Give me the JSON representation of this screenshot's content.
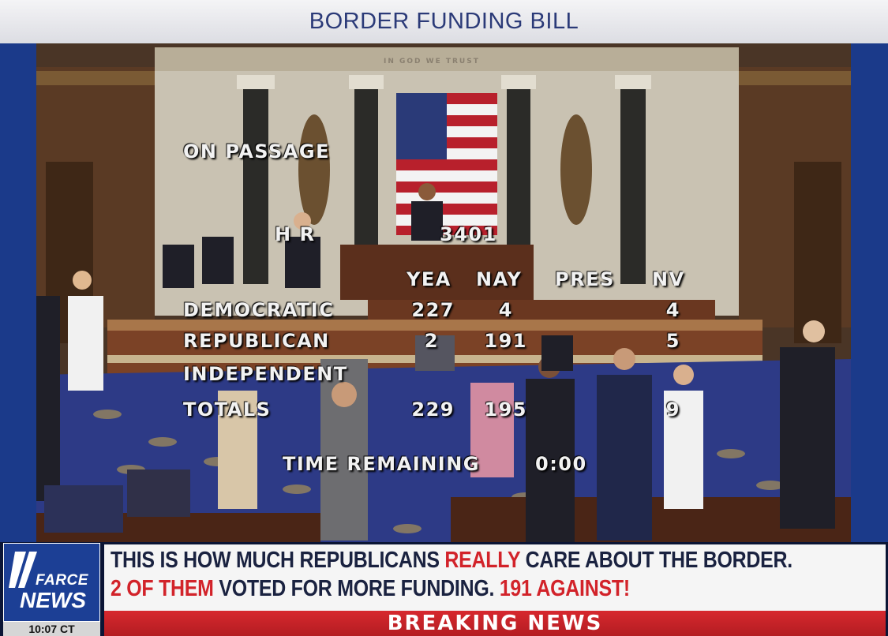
{
  "title_bar": {
    "text": "BORDER FUNDING BILL"
  },
  "vote_board": {
    "on_passage": "ON PASSAGE",
    "bill_prefix": "H R",
    "bill_number": "3401",
    "columns": {
      "yea": "YEA",
      "nay": "NAY",
      "pres": "PRES",
      "nv": "NV"
    },
    "rows": [
      {
        "party": "DEMOCRATIC",
        "yea": "227",
        "nay": "4",
        "pres": "",
        "nv": "4"
      },
      {
        "party": "REPUBLICAN",
        "yea": "2",
        "nay": "191",
        "pres": "",
        "nv": "5"
      },
      {
        "party": "INDEPENDENT",
        "yea": "",
        "nay": "",
        "pres": "",
        "nv": ""
      },
      {
        "party": "TOTALS",
        "yea": "229",
        "nay": "195",
        "pres": "",
        "nv": "9"
      }
    ],
    "time_remaining_label": "TIME REMAINING",
    "time_remaining_value": "0:00"
  },
  "chamber_sign": "IN GOD WE TRUST",
  "lower_third": {
    "logo_top": "FARCE",
    "logo_bottom": "NEWS",
    "clock": "10:07 CT",
    "headline1_a": "THIS IS HOW MUCH REPUBLICANS ",
    "headline1_red": "REALLY",
    "headline1_b": " CARE ABOUT THE BORDER.",
    "headline2_red1": "2 OF THEM",
    "headline2_a": " VOTED FOR MORE FUNDING. ",
    "headline2_red2": "191 AGAINST!",
    "banner": "BREAKING NEWS"
  },
  "colors": {
    "frame_blue": "#1b3a8a",
    "title_text": "#2b3a78",
    "headline_text": "#1a2240",
    "accent_red": "#d2232a",
    "board_text": "#f2f2f2"
  }
}
